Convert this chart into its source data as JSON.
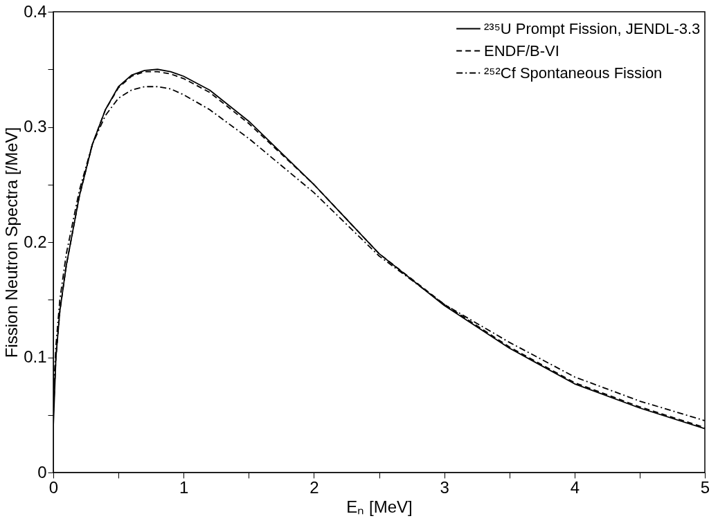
{
  "chart_data": {
    "type": "line",
    "xlabel": "Eₙ [MeV]",
    "ylabel": "Fission Neutron Spectra [/MeV]",
    "x": [
      0,
      0.02,
      0.05,
      0.1,
      0.2,
      0.3,
      0.4,
      0.5,
      0.6,
      0.7,
      0.8,
      0.9,
      1.0,
      1.2,
      1.5,
      2.0,
      2.5,
      3.0,
      3.5,
      4.0,
      4.5,
      5.0
    ],
    "series": [
      {
        "name": "²³⁵U Prompt Fission, JENDL-3.3",
        "color": "#000000",
        "line_style": "solid",
        "values": [
          0.04,
          0.1,
          0.14,
          0.18,
          0.24,
          0.285,
          0.315,
          0.335,
          0.345,
          0.349,
          0.35,
          0.348,
          0.344,
          0.332,
          0.305,
          0.25,
          0.19,
          0.145,
          0.108,
          0.077,
          0.056,
          0.038
        ]
      },
      {
        "name": "ENDF/B-VI",
        "color": "#000000",
        "line_style": "dashed",
        "values": [
          0.05,
          0.1,
          0.14,
          0.18,
          0.24,
          0.285,
          0.315,
          0.334,
          0.344,
          0.348,
          0.348,
          0.346,
          0.342,
          0.33,
          0.303,
          0.25,
          0.19,
          0.146,
          0.109,
          0.078,
          0.057,
          0.039
        ]
      },
      {
        "name": "²⁵²Cf Spontaneous Fission",
        "color": "#000000",
        "line_style": "dashdot",
        "values": [
          0.065,
          0.11,
          0.15,
          0.19,
          0.245,
          0.285,
          0.31,
          0.325,
          0.332,
          0.335,
          0.335,
          0.333,
          0.328,
          0.315,
          0.29,
          0.243,
          0.188,
          0.146,
          0.113,
          0.083,
          0.062,
          0.045
        ]
      }
    ],
    "xlim": [
      0,
      5
    ],
    "ylim": [
      0,
      0.4
    ],
    "xticks": [
      0,
      {
        "value": 0.5,
        "label": null
      },
      1,
      {
        "value": 1.5,
        "label": null
      },
      2,
      {
        "value": 2.5,
        "label": null
      },
      3,
      {
        "value": 3.5,
        "label": null
      },
      4,
      {
        "value": 4.5,
        "label": null
      },
      5
    ],
    "yticks": [
      0,
      {
        "value": 0.05,
        "label": null
      },
      0.1,
      {
        "value": 0.15,
        "label": null
      },
      0.2,
      {
        "value": 0.25,
        "label": null
      },
      0.3,
      {
        "value": 0.35,
        "label": null
      },
      0.4
    ],
    "grid": false,
    "legend": "top right",
    "marker": "none"
  }
}
